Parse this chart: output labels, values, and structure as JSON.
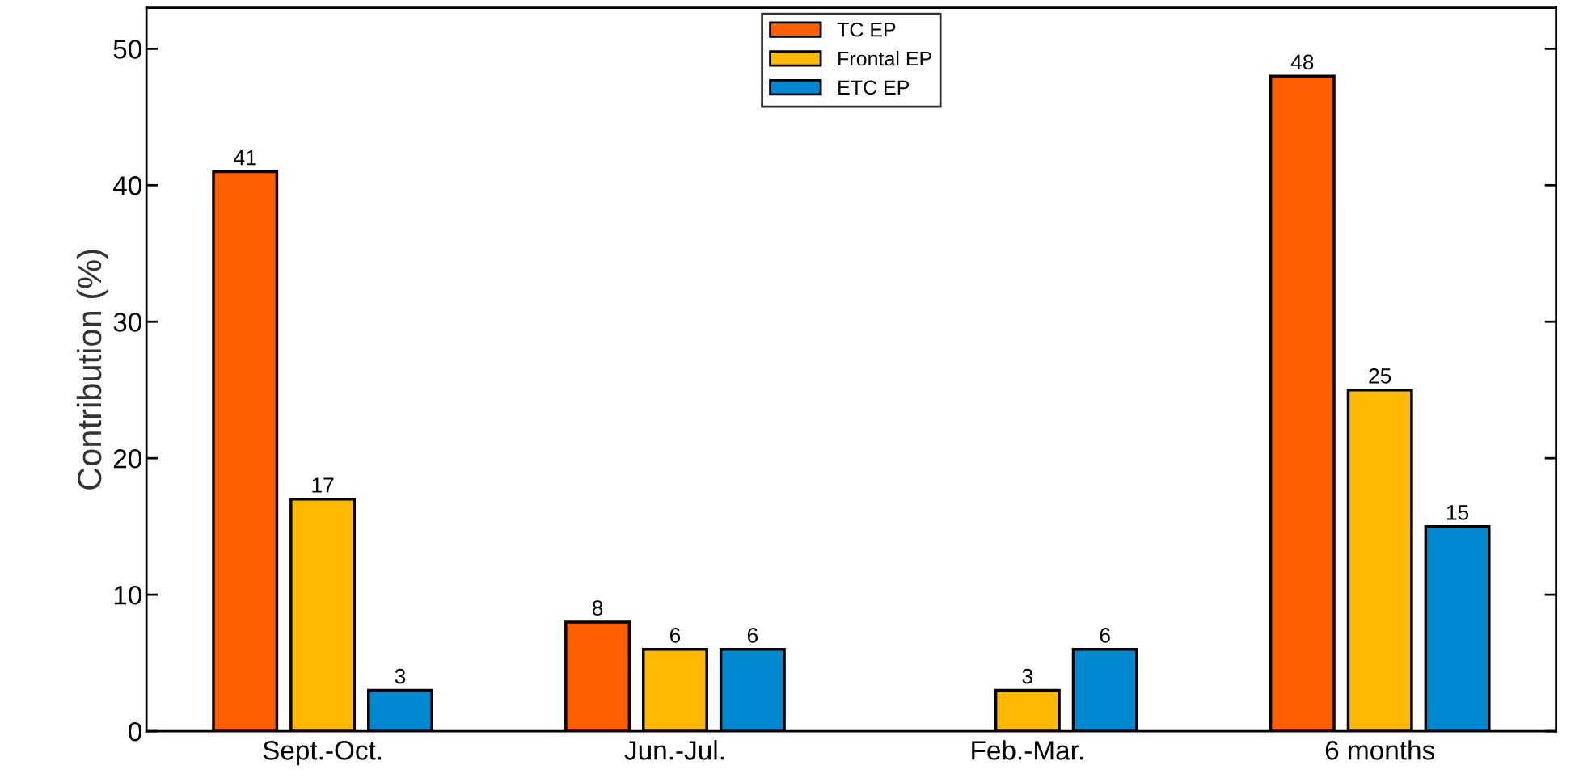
{
  "chart_data": {
    "type": "bar",
    "ylabel": "Contribution (%)",
    "categories": [
      "Sept.-Oct.",
      "Jun.-Jul.",
      "Feb.-Mar.",
      "6 months"
    ],
    "series": [
      {
        "name": "TC EP",
        "color": "#ff5f00",
        "values": [
          41,
          8,
          null,
          48
        ]
      },
      {
        "name": "Frontal EP",
        "color": "#ffb900",
        "values": [
          17,
          6,
          3,
          25
        ]
      },
      {
        "name": "ETC EP",
        "color": "#0088d0",
        "values": [
          3,
          6,
          6,
          15
        ]
      }
    ],
    "ylim": [
      0,
      53
    ],
    "yticks": [
      0,
      10,
      20,
      30,
      40,
      50
    ],
    "data_labels": true,
    "legend": "top",
    "grid": false
  }
}
